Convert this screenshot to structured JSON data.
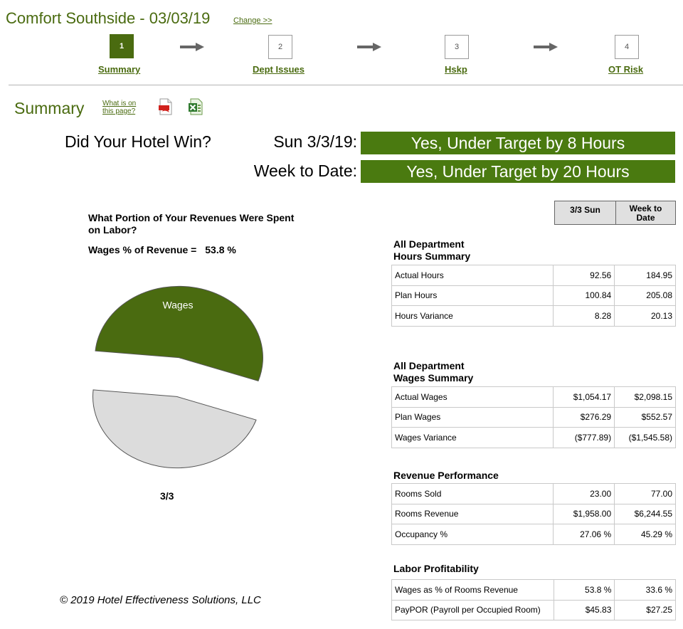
{
  "header": {
    "hotel_title": "Comfort Southside - 03/03/19",
    "change_link": "Change >>"
  },
  "steps": [
    {
      "number": "1",
      "label": "Summary",
      "active": true
    },
    {
      "number": "2",
      "label": "Dept Issues",
      "active": false
    },
    {
      "number": "3",
      "label": "Hskp",
      "active": false
    },
    {
      "number": "4",
      "label": "OT Risk",
      "active": false
    }
  ],
  "summary": {
    "heading": "Summary",
    "what_is_line1": "What is on",
    "what_is_line2": "this page?",
    "pdf_icon": "pdf-icon",
    "excel_icon": "excel-icon"
  },
  "win": {
    "question": "Did Your Hotel Win?",
    "day_label": "Sun 3/3/19:",
    "day_result": "Yes, Under Target by 8 Hours",
    "wtd_label": "Week to Date:",
    "wtd_result": "Yes, Under Target by 20 Hours"
  },
  "colors": {
    "brand_green": "#4a6b10",
    "banner_green": "#4a7a10",
    "wages_slice": "#4a6b10",
    "rest_slice": "#dcdcdc"
  },
  "chart_data": {
    "type": "pie",
    "title": "What Portion of Your Revenues Were Spent on Labor?",
    "subtitle_label": "Wages % of Revenue =",
    "subtitle_value": "53.8 %",
    "categories": [
      "Wages",
      ""
    ],
    "values": [
      53.8,
      46.2
    ],
    "slice_labels": [
      "Wages",
      ""
    ],
    "caption": "3/3",
    "exploded": true
  },
  "table": {
    "col1_header": "3/3 Sun",
    "col2_header_line1": "Week to",
    "col2_header_line2": "Date",
    "sections": [
      {
        "title_line1": "All Department",
        "title_line2": "Hours Summary",
        "rows": [
          {
            "label": "Actual Hours",
            "day": "92.56",
            "wtd": "184.95"
          },
          {
            "label": "Plan Hours",
            "day": "100.84",
            "wtd": "205.08"
          },
          {
            "label": "Hours Variance",
            "day": "8.28",
            "wtd": "20.13"
          }
        ]
      },
      {
        "title_line1": "All Department",
        "title_line2": "Wages Summary",
        "rows": [
          {
            "label": "Actual Wages",
            "day": "$1,054.17",
            "wtd": "$2,098.15"
          },
          {
            "label": "Plan Wages",
            "day": "$276.29",
            "wtd": "$552.57"
          },
          {
            "label": "Wages Variance",
            "day": "($777.89)",
            "wtd": "($1,545.58)"
          }
        ]
      },
      {
        "title_line1": "Revenue Performance",
        "title_line2": "",
        "rows": [
          {
            "label": "Rooms Sold",
            "day": "23.00",
            "wtd": "77.00"
          },
          {
            "label": "Rooms Revenue",
            "day": "$1,958.00",
            "wtd": "$6,244.55"
          },
          {
            "label": "Occupancy %",
            "day": "27.06 %",
            "wtd": "45.29 %"
          }
        ]
      },
      {
        "title_line1": "Labor Profitability",
        "title_line2": "",
        "rows": [
          {
            "label": "Wages as % of Rooms Revenue",
            "day": "53.8 %",
            "wtd": "33.6 %"
          },
          {
            "label": "PayPOR (Payroll per Occupied Room)",
            "day": "$45.83",
            "wtd": "$27.25"
          }
        ]
      }
    ]
  },
  "footer": {
    "copyright": "© 2019 Hotel Effectiveness Solutions, LLC"
  }
}
